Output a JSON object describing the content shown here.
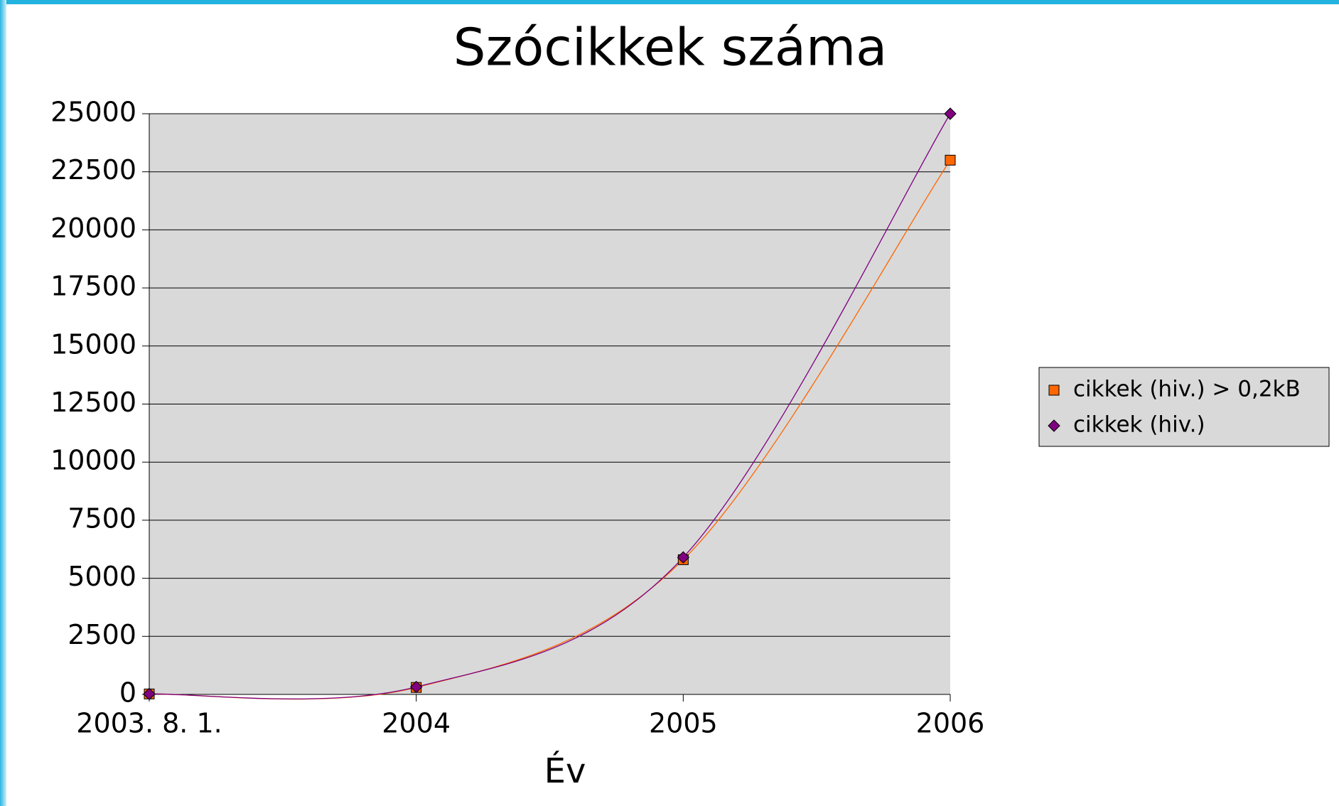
{
  "chart_data": {
    "type": "line",
    "title": "Szócikkek száma",
    "x_label": "Év",
    "categories": [
      "2003. 8. 1.",
      "2004",
      "2005",
      "2006"
    ],
    "series": [
      {
        "name": "cikkek (hiv.) > 0,2kB",
        "color": "#ff6600",
        "marker": "square",
        "values": [
          20,
          300,
          5800,
          23000
        ]
      },
      {
        "name": "cikkek (hiv.)",
        "color": "#800080",
        "marker": "diamond",
        "values": [
          20,
          320,
          5900,
          25000
        ]
      }
    ],
    "ylim": [
      0,
      25000
    ],
    "yticks": [
      0,
      2500,
      5000,
      7500,
      10000,
      12500,
      15000,
      17500,
      20000,
      22500,
      25000
    ],
    "grid": true,
    "smooth": true,
    "legend": "right"
  }
}
